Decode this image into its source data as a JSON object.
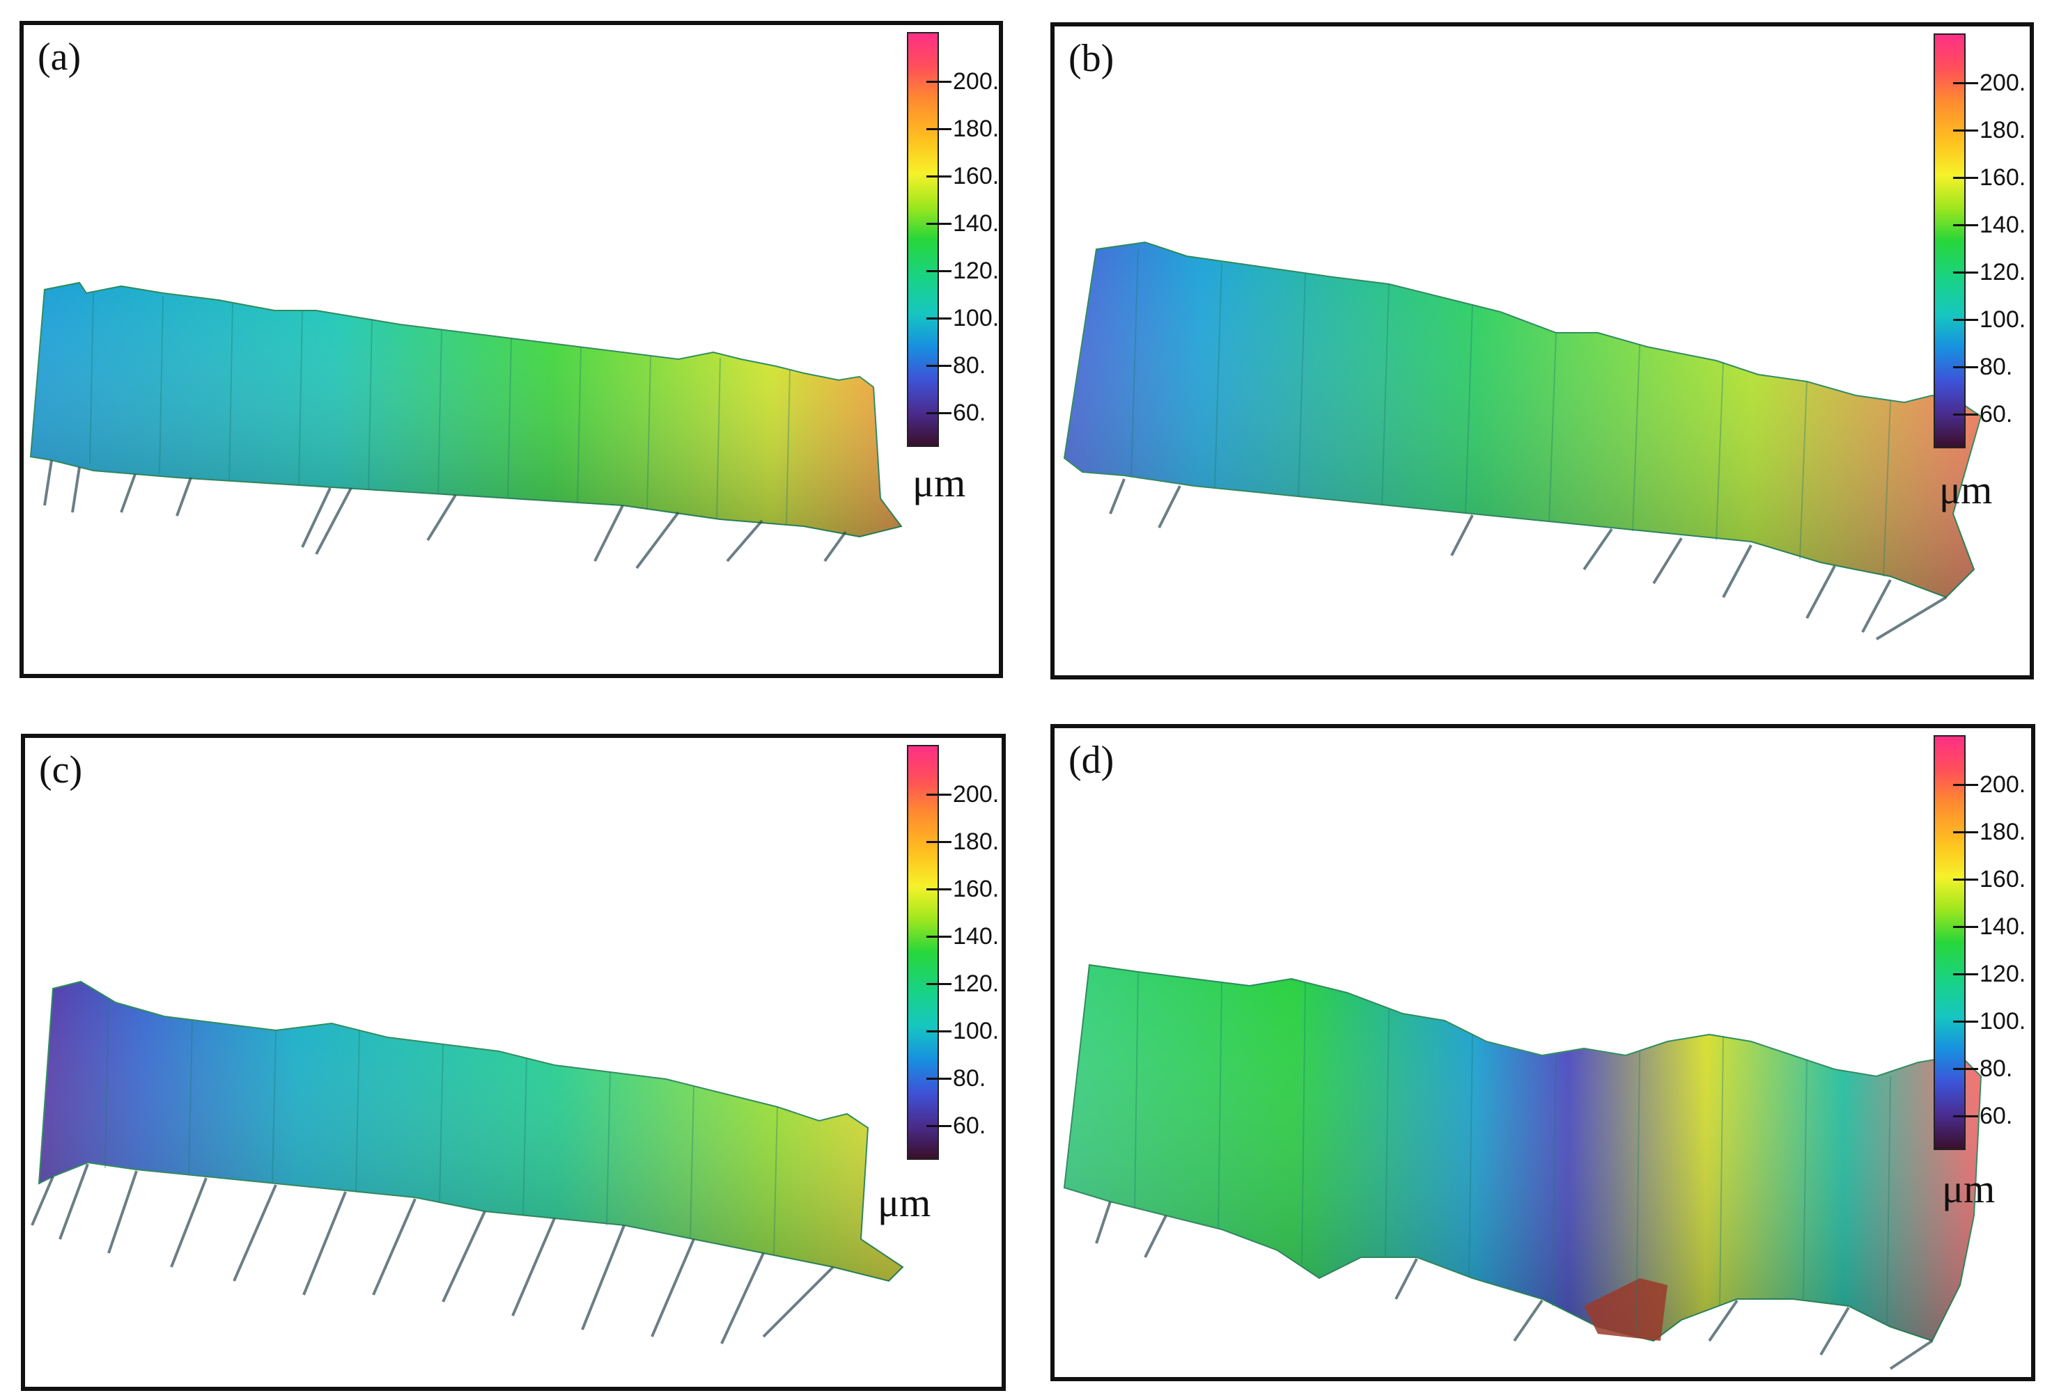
{
  "panels": [
    {
      "label": "(a)",
      "unit": "μm",
      "ticks": [
        "200.",
        "180.",
        "160.",
        "140.",
        "120.",
        "100.",
        "80.",
        "60."
      ]
    },
    {
      "label": "(b)",
      "unit": "μm",
      "ticks": [
        "200.",
        "180.",
        "160.",
        "140.",
        "120.",
        "100.",
        "80.",
        "60."
      ]
    },
    {
      "label": "(c)",
      "unit": "μm",
      "ticks": [
        "200.",
        "180.",
        "160.",
        "140.",
        "120.",
        "100.",
        "80.",
        "60."
      ]
    },
    {
      "label": "(d)",
      "unit": "μm",
      "ticks": [
        "200.",
        "180.",
        "160.",
        "140.",
        "120.",
        "100.",
        "80.",
        "60."
      ]
    }
  ],
  "colorscale": [
    "#ff2f86",
    "#ff8a30",
    "#f6f22a",
    "#27d63a",
    "#16c6c0",
    "#1890e0",
    "#4a2c8e",
    "#3a0f2a"
  ]
}
